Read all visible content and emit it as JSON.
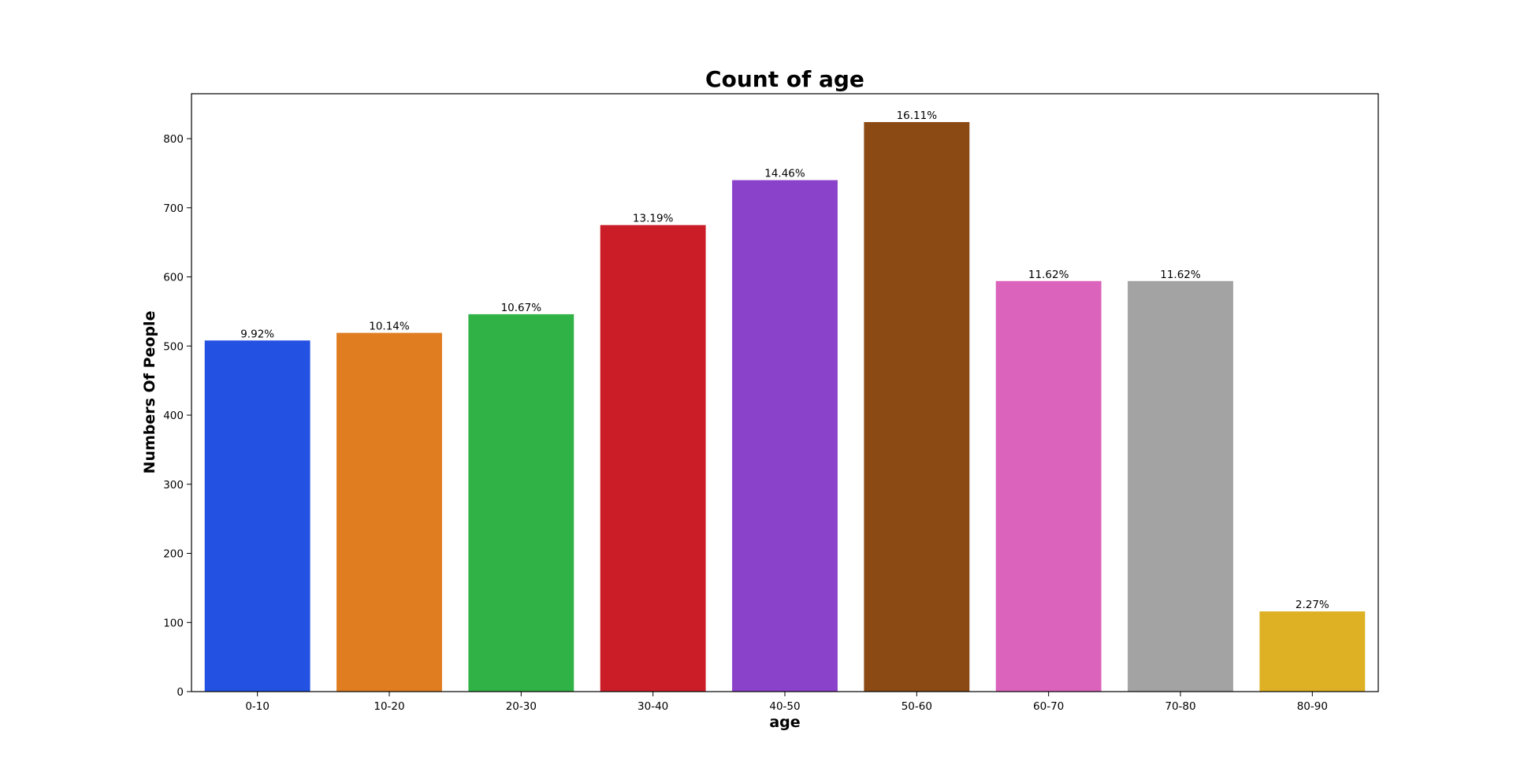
{
  "chart_data": {
    "type": "bar",
    "title": "Count of age",
    "xlabel": "age",
    "ylabel": "Numbers Of People",
    "categories": [
      "0-10",
      "10-20",
      "20-30",
      "30-40",
      "40-50",
      "50-60",
      "60-70",
      "70-80",
      "80-90"
    ],
    "values": [
      508,
      519,
      546,
      675,
      740,
      824,
      594,
      594,
      116
    ],
    "labels": [
      "9.92%",
      "10.14%",
      "10.67%",
      "13.19%",
      "14.46%",
      "16.11%",
      "11.62%",
      "11.62%",
      "2.27%"
    ],
    "colors": [
      "#2351e2",
      "#e07d20",
      "#31b247",
      "#cb1d27",
      "#8b42cb",
      "#8b4914",
      "#dc63bb",
      "#a3a3a3",
      "#ddb123"
    ],
    "ylim": [
      0,
      865
    ],
    "yticks": [
      0,
      100,
      200,
      300,
      400,
      500,
      600,
      700,
      800
    ],
    "grid": false,
    "legend": "none"
  }
}
